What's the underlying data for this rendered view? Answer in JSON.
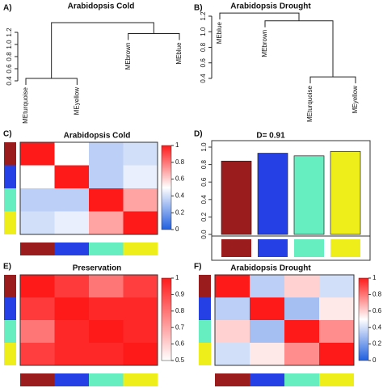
{
  "chart_data": [
    {
      "type": "dendrogram",
      "label": "A)",
      "title": "Arabidopsis Cold",
      "leaves": [
        "MEturquoise",
        "MEyellow",
        "MEbrown",
        "MEblue"
      ],
      "merges": [
        {
          "children": [
            0,
            1
          ],
          "height": 0.44
        },
        {
          "children": [
            2,
            3
          ],
          "height": 1.18
        },
        {
          "children": [
            4,
            5
          ],
          "height": 1.36
        }
      ],
      "ylim": [
        0.4,
        1.2
      ],
      "yticks": [
        0.4,
        0.6,
        0.8,
        {
          "value": 1,
          "label": "1.0"
        },
        1.2
      ]
    },
    {
      "type": "dendrogram",
      "label": "B)",
      "title": "Arabidopsis Drought",
      "leaves": [
        "MEblue",
        "MEbrown",
        "MEturquoise",
        "MEyellow"
      ],
      "merges": [
        {
          "children": [
            2,
            3
          ],
          "height": 0.42
        },
        {
          "children": [
            1,
            4
          ],
          "height": 1.14
        },
        {
          "children": [
            0,
            5
          ],
          "height": 1.24
        }
      ],
      "ylim": [
        0.4,
        1.2
      ],
      "yticks": [
        0.4,
        0.6,
        0.8,
        {
          "value": 1,
          "label": "1.0"
        },
        1.2
      ]
    },
    {
      "type": "heatmap",
      "label": "C)",
      "title": "Arabidopsis Cold",
      "values": [
        [
          1,
          0.5,
          0.35,
          0.4
        ],
        [
          0.5,
          1,
          0.35,
          0.45
        ],
        [
          0.35,
          0.35,
          1,
          0.7
        ],
        [
          0.4,
          0.45,
          0.7,
          1
        ]
      ],
      "colors": [
        "#9b1c1c",
        "#2541e6",
        "#66eec0",
        "#eeee1a"
      ],
      "zlim": [
        0,
        1
      ],
      "zticks": [
        0,
        0.2,
        0.4,
        0.6,
        0.8,
        1
      ],
      "colorscale": [
        "#1f5fe0",
        "#ffffff",
        "#ff1a1a"
      ]
    },
    {
      "type": "bar",
      "label": "D)",
      "title": "D= 0.91",
      "values": [
        0.84,
        0.93,
        0.9,
        0.95
      ],
      "colors": [
        "#9b1c1c",
        "#2541e6",
        "#66eec0",
        "#eeee1a"
      ],
      "ylim": [
        0,
        1
      ],
      "yticks": [
        {
          "value": 0,
          "label": "0.0"
        },
        0.2,
        0.4,
        0.6,
        0.8,
        {
          "value": 1,
          "label": "1.0"
        }
      ]
    },
    {
      "type": "heatmap",
      "label": "E)",
      "title": "Preservation",
      "values": [
        [
          1,
          0.93,
          0.8,
          0.92
        ],
        [
          0.93,
          1,
          0.97,
          0.97
        ],
        [
          0.8,
          0.97,
          1,
          0.97
        ],
        [
          0.92,
          0.97,
          0.97,
          1
        ]
      ],
      "colors": [
        "#9b1c1c",
        "#2541e6",
        "#66eec0",
        "#eeee1a"
      ],
      "zlim": [
        0.5,
        1
      ],
      "zticks": [
        0.5,
        0.6,
        0.7,
        0.8,
        0.9,
        1
      ],
      "colorscale": [
        "#ffffff",
        "#ff1a1a"
      ]
    },
    {
      "type": "heatmap",
      "label": "F)",
      "title": "Arabidopsis Drought",
      "values": [
        [
          1,
          0.35,
          0.6,
          0.4
        ],
        [
          0.35,
          1,
          0.3,
          0.55
        ],
        [
          0.6,
          0.3,
          1,
          0.75
        ],
        [
          0.4,
          0.55,
          0.75,
          1
        ]
      ],
      "colors": [
        "#9b1c1c",
        "#2541e6",
        "#66eec0",
        "#eeee1a"
      ],
      "zlim": [
        0,
        1
      ],
      "zticks": [
        0,
        0.2,
        0.4,
        0.6,
        0.8,
        1
      ],
      "colorscale": [
        "#1f5fe0",
        "#ffffff",
        "#ff1a1a"
      ]
    }
  ]
}
